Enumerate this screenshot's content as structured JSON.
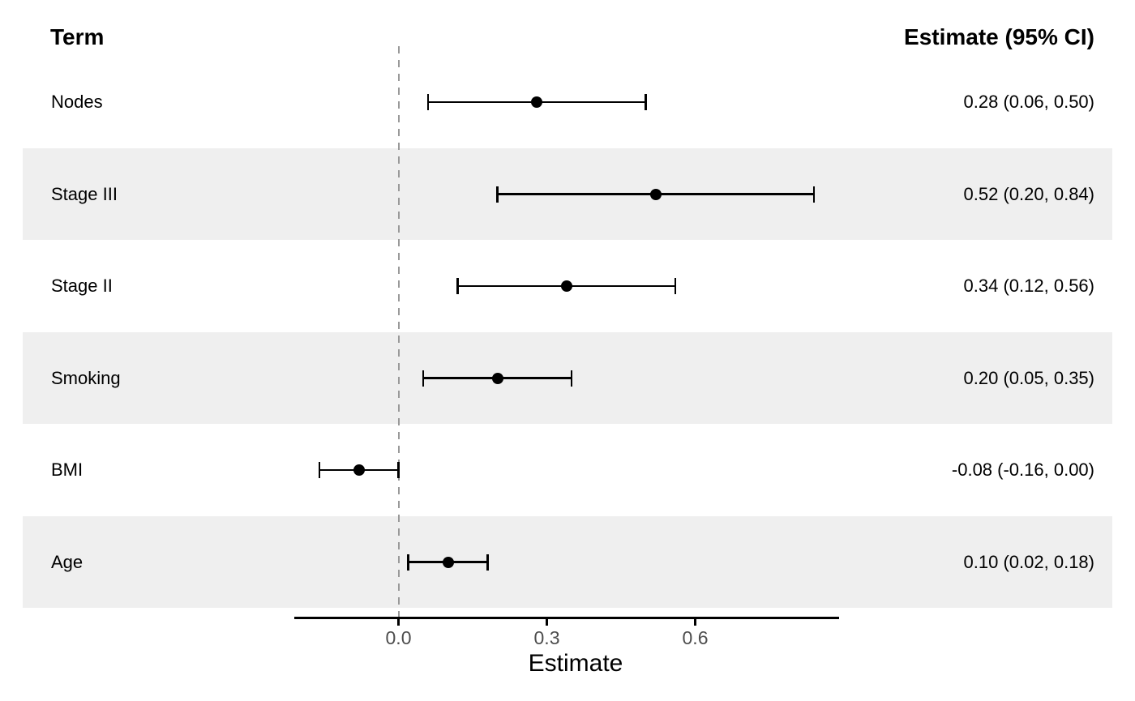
{
  "chart_data": {
    "type": "scatter",
    "variant": "forest-plot-with-error-bars",
    "term_header": "Term",
    "estimate_header": "Estimate (95% CI)",
    "xlabel": "Estimate",
    "x_tick_labels": [
      "0.0",
      "0.3",
      "0.6"
    ],
    "x_tick_values": [
      0,
      0.3,
      0.6
    ],
    "xlim": [
      -0.21,
      0.89
    ],
    "reference_line_x": 0,
    "grid": "off",
    "legend": "none",
    "rows": [
      {
        "term": "Nodes",
        "estimate": 0.28,
        "ci_low": 0.06,
        "ci_high": 0.5,
        "ci_label": "0.28 (0.06, 0.50)",
        "striped": false
      },
      {
        "term": "Stage III",
        "estimate": 0.52,
        "ci_low": 0.2,
        "ci_high": 0.84,
        "ci_label": "0.52 (0.20, 0.84)",
        "striped": true
      },
      {
        "term": "Stage II",
        "estimate": 0.34,
        "ci_low": 0.12,
        "ci_high": 0.56,
        "ci_label": "0.34 (0.12, 0.56)",
        "striped": false
      },
      {
        "term": "Smoking",
        "estimate": 0.2,
        "ci_low": 0.05,
        "ci_high": 0.35,
        "ci_label": "0.20 (0.05, 0.35)",
        "striped": true
      },
      {
        "term": "BMI",
        "estimate": -0.08,
        "ci_low": -0.16,
        "ci_high": 0.0,
        "ci_label": "-0.08 (-0.16, 0.00)",
        "striped": false
      },
      {
        "term": "Age",
        "estimate": 0.1,
        "ci_low": 0.02,
        "ci_high": 0.18,
        "ci_label": "0.10 (0.02, 0.18)",
        "striped": true
      }
    ]
  },
  "colors": {
    "background": "#FFFFFF",
    "stripe": "#EFEFEF",
    "reference_line": "#999999",
    "tick_text": "#4D4D4D",
    "data_ink": "#000000"
  }
}
